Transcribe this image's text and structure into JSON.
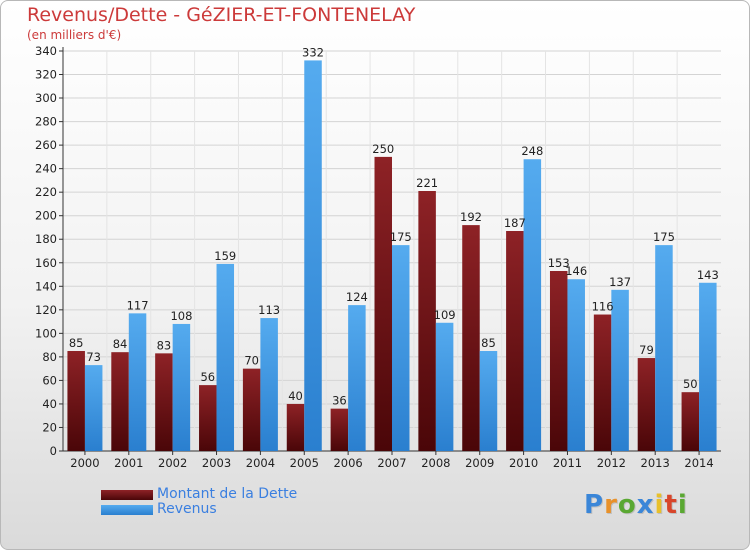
{
  "title": "Revenus/Dette - GéZIER-ET-FONTENELAY",
  "subtitle": "(en milliers d'€)",
  "brand": "Proxiti",
  "colors": {
    "dette": "#7a1518",
    "revenus": "#3d9ae6",
    "title": "#cc3a3a",
    "legend_text": "#3a7fe0"
  },
  "chart_data": {
    "type": "bar",
    "title": "Revenus/Dette - GéZIER-ET-FONTENELAY",
    "ylabel": "(en milliers d'€)",
    "xlabel": "",
    "ylim": [
      0,
      340
    ],
    "ytick_step": 20,
    "grid": true,
    "legend_position": "bottom-left",
    "categories": [
      "2000",
      "2001",
      "2002",
      "2003",
      "2004",
      "2005",
      "2006",
      "2007",
      "2008",
      "2009",
      "2010",
      "2011",
      "2012",
      "2013",
      "2014"
    ],
    "series": [
      {
        "name": "Montant de la Dette",
        "values": [
          85,
          84,
          83,
          56,
          70,
          40,
          36,
          250,
          221,
          192,
          187,
          153,
          116,
          79,
          50
        ]
      },
      {
        "name": "Revenus",
        "values": [
          73,
          117,
          108,
          159,
          113,
          332,
          124,
          175,
          109,
          85,
          248,
          146,
          137,
          175,
          143
        ]
      }
    ]
  }
}
